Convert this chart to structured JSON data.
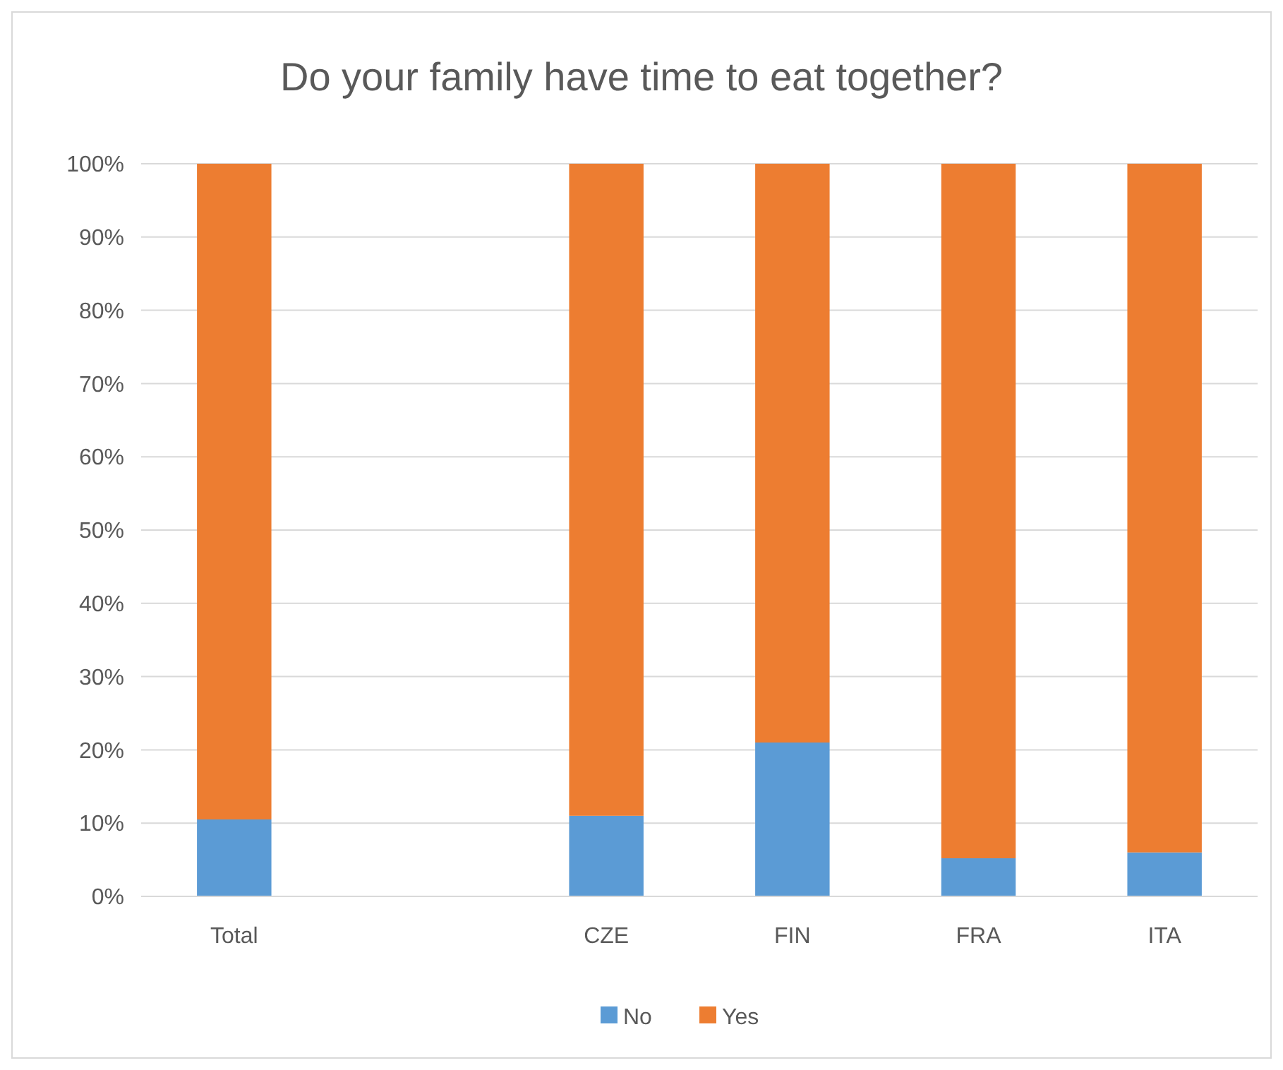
{
  "chart_data": {
    "type": "bar",
    "title": "Do your family have time to eat together?",
    "categories": [
      "Total",
      null,
      "CZE",
      "FIN",
      "FRA",
      "ITA"
    ],
    "stacked": true,
    "series": [
      {
        "name": "No",
        "color": "#5b9bd5",
        "values": [
          10.5,
          null,
          11,
          21,
          5.2,
          6
        ]
      },
      {
        "name": "Yes",
        "color": "#ed7d31",
        "values": [
          89.5,
          null,
          89,
          79,
          94.8,
          94
        ]
      }
    ],
    "ylim": [
      0,
      100
    ],
    "yticks": [
      {
        "value": 0,
        "label": "0%"
      },
      {
        "value": 10,
        "label": "10%"
      },
      {
        "value": 20,
        "label": "20%"
      },
      {
        "value": 30,
        "label": "30%"
      },
      {
        "value": 40,
        "label": "40%"
      },
      {
        "value": 50,
        "label": "50%"
      },
      {
        "value": 60,
        "label": "60%"
      },
      {
        "value": 70,
        "label": "70%"
      },
      {
        "value": 80,
        "label": "80%"
      },
      {
        "value": 90,
        "label": "90%"
      },
      {
        "value": 100,
        "label": "100%"
      }
    ],
    "grid": "y",
    "legend": "bottom"
  }
}
